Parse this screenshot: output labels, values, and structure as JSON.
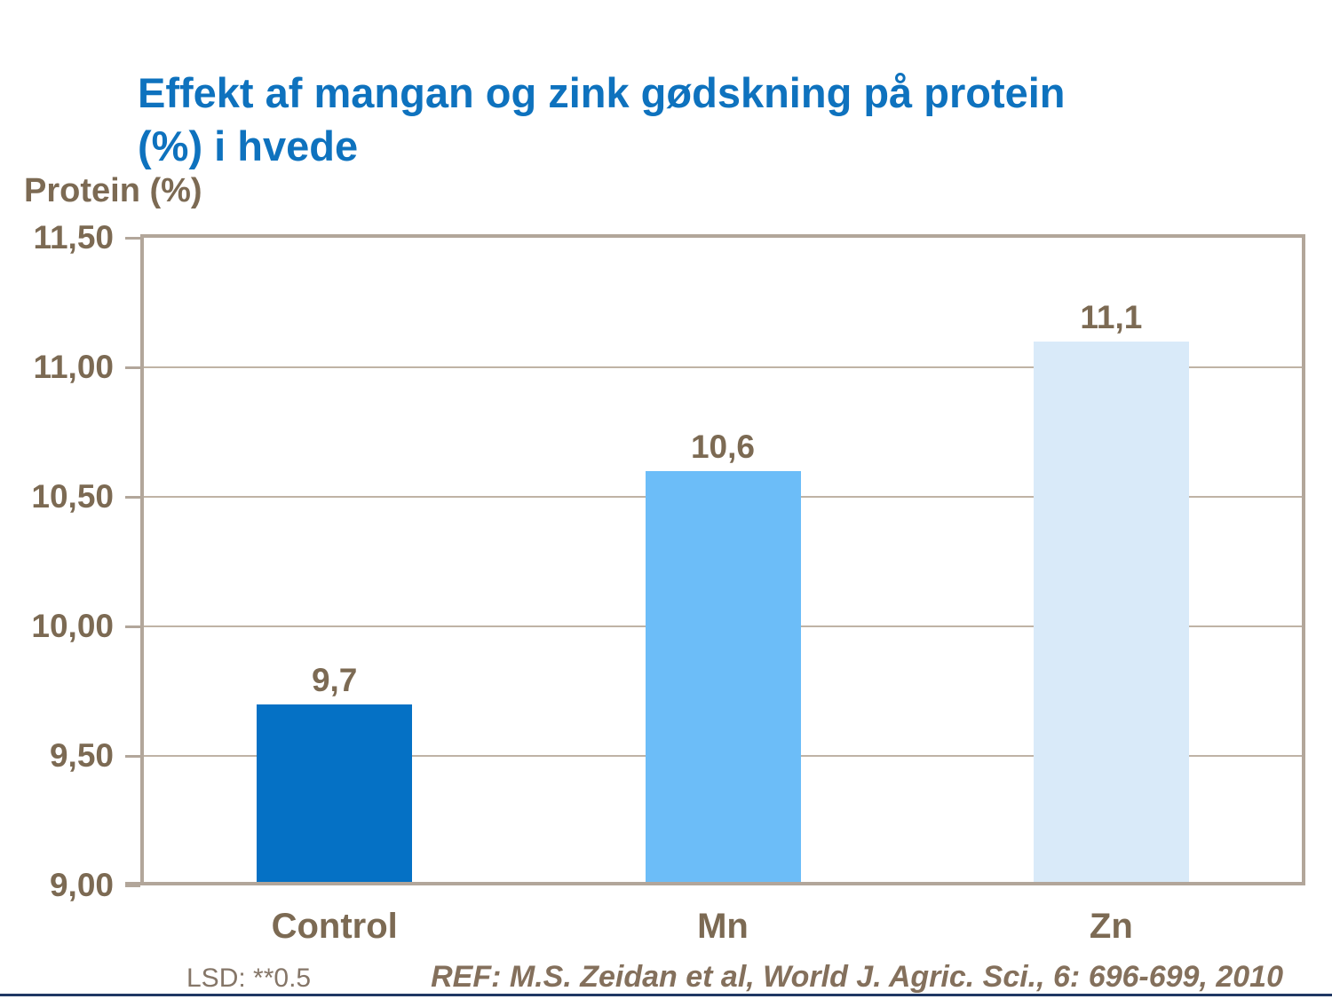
{
  "slide": {
    "title_lines": [
      "Effekt af mangan og zink gødskning på protein",
      "(%) i hvede"
    ],
    "footer_left": "LSD: **0.5",
    "footer_right": "REF: M.S. Zeidan et al, World J. Agric. Sci., 6: 696-699, 2010"
  },
  "colors": {
    "title_blue": "#0E72BE",
    "text_brown": "#7C6A53",
    "lsd_text": "#857668",
    "ref_text": "#84705C",
    "axis_tan": "#B2A69A",
    "gridline_tan": "#BFB3A5",
    "bottom_rule_navy": "#1F3864"
  },
  "chart_data": {
    "type": "bar",
    "title": "Effekt af mangan og zink gødskning på protein (%) i hvede",
    "xlabel": "",
    "ylabel": "Protein (%)",
    "categories": [
      "Control",
      "Mn",
      "Zn"
    ],
    "values": [
      9.7,
      10.6,
      11.1
    ],
    "value_labels": [
      "9,7",
      "10,6",
      "11,1"
    ],
    "bar_colors": [
      "#0571C5",
      "#6CBDF8",
      "#D9EAF9"
    ],
    "ylim": [
      9.0,
      11.5
    ],
    "yticks": [
      {
        "value": 11.5,
        "label": "11,50"
      },
      {
        "value": 11.0,
        "label": "11,00"
      },
      {
        "value": 10.5,
        "label": "10,50"
      },
      {
        "value": 10.0,
        "label": "10,00"
      },
      {
        "value": 9.5,
        "label": "9,50"
      },
      {
        "value": 9.0,
        "label": "9,00"
      }
    ],
    "grid": "horizontal",
    "legend": "none",
    "annotation": "LSD: **0.5",
    "reference": "REF: M.S. Zeidan et al, World J. Agric. Sci., 6: 696-699, 2010"
  }
}
